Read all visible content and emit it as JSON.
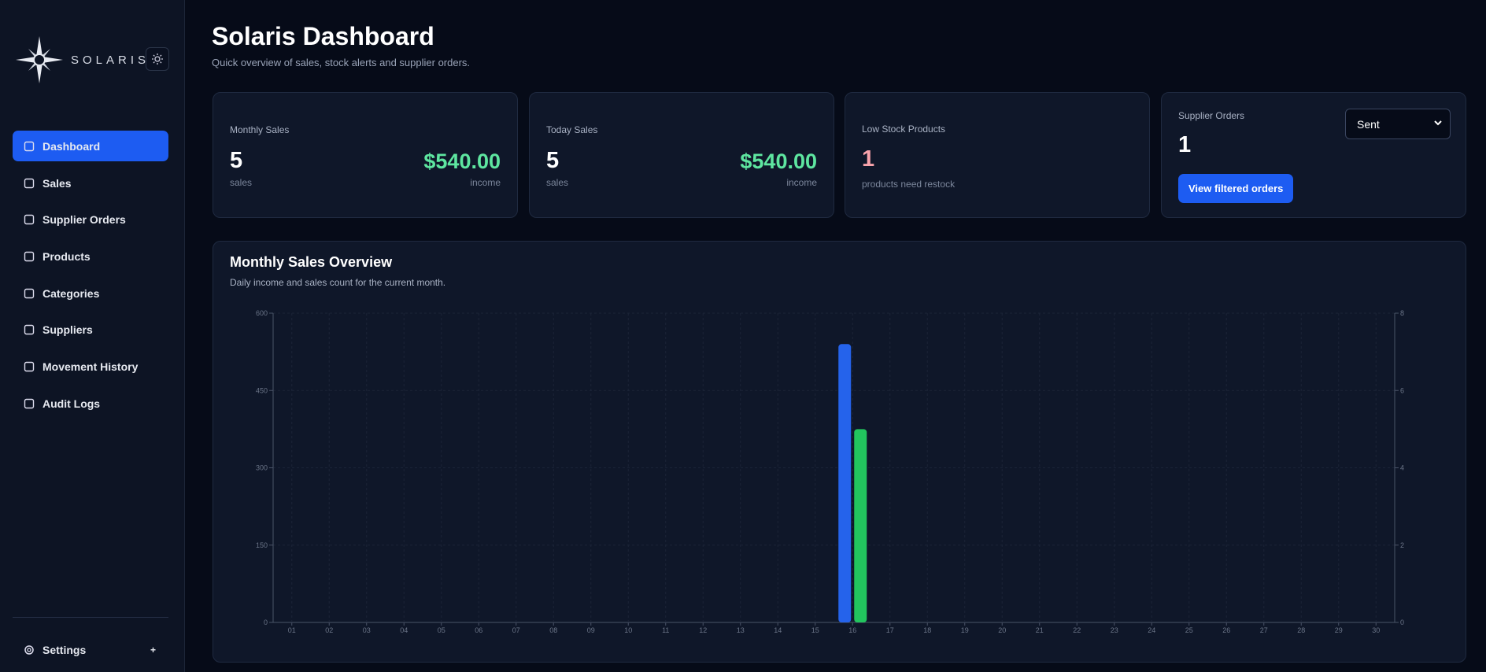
{
  "sidebar": {
    "brand": "SOLARIS",
    "nav": [
      "Dashboard",
      "Sales",
      "Supplier Orders",
      "Products",
      "Categories",
      "Suppliers",
      "Movement History",
      "Audit Logs"
    ],
    "settings": "Settings",
    "settings_toggle": "+"
  },
  "header": {
    "title": "Solaris Dashboard",
    "subtitle": "Quick overview of sales, stock alerts and supplier orders."
  },
  "cards": {
    "monthly": {
      "label": "Monthly Sales",
      "count": "5",
      "count_unit": "sales",
      "income": "$540.00",
      "income_unit": "income"
    },
    "today": {
      "label": "Today Sales",
      "count": "5",
      "count_unit": "sales",
      "income": "$540.00",
      "income_unit": "income"
    },
    "low_stock": {
      "label": "Low Stock Products",
      "count": "1",
      "note": "products need restock"
    },
    "supplier": {
      "label": "Supplier Orders",
      "count": "1",
      "filter": "Sent",
      "button": "View filtered orders"
    }
  },
  "chart_data": {
    "type": "bar",
    "title": "Monthly Sales Overview",
    "subtitle": "Daily income and sales count for the current month.",
    "categories": [
      "01",
      "02",
      "03",
      "04",
      "05",
      "06",
      "07",
      "08",
      "09",
      "10",
      "11",
      "12",
      "13",
      "14",
      "15",
      "16",
      "17",
      "18",
      "19",
      "20",
      "21",
      "22",
      "23",
      "24",
      "25",
      "26",
      "27",
      "28",
      "29",
      "30"
    ],
    "series": [
      {
        "color": "#2563eb",
        "values": [
          0,
          0,
          0,
          0,
          0,
          0,
          0,
          0,
          0,
          0,
          0,
          0,
          0,
          0,
          0,
          540,
          0,
          0,
          0,
          0,
          0,
          0,
          0,
          0,
          0,
          0,
          0,
          0,
          0,
          0
        ]
      },
      {
        "color": "#22c55e",
        "axis": "y2",
        "values": [
          0,
          0,
          0,
          0,
          0,
          0,
          0,
          0,
          0,
          0,
          0,
          0,
          0,
          0,
          0,
          5,
          0,
          0,
          0,
          0,
          0,
          0,
          0,
          0,
          0,
          0,
          0,
          0,
          0,
          0
        ]
      }
    ],
    "ylim": [
      0,
      600
    ],
    "yticks": [
      0,
      150,
      300,
      450,
      600
    ],
    "y2lim": [
      0,
      8
    ],
    "y2ticks": [
      0,
      2,
      4,
      6,
      8
    ],
    "grid": true
  }
}
